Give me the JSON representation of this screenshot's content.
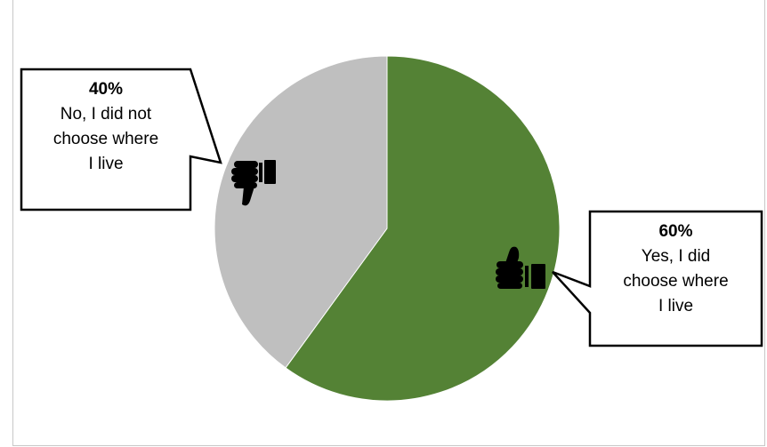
{
  "chart_data": {
    "type": "pie",
    "slices": [
      {
        "label": "Yes, I did choose where I live",
        "value": 60,
        "value_label": "60%",
        "color": "#548235",
        "icon": "thumbs-up-icon"
      },
      {
        "label": "No, I did not choose where I live",
        "value": 40,
        "value_label": "40%",
        "color": "#bfbfbf",
        "icon": "thumbs-down-icon"
      }
    ],
    "start_angle": "12 o'clock, clockwise",
    "legend": "none",
    "data_labels": "callouts"
  },
  "callouts": {
    "no": {
      "pct": "40%",
      "lines": [
        "No, I did not",
        "choose where",
        "I live"
      ]
    },
    "yes": {
      "pct": "60%",
      "lines": [
        "Yes, I did",
        "choose where",
        "I live"
      ]
    }
  }
}
